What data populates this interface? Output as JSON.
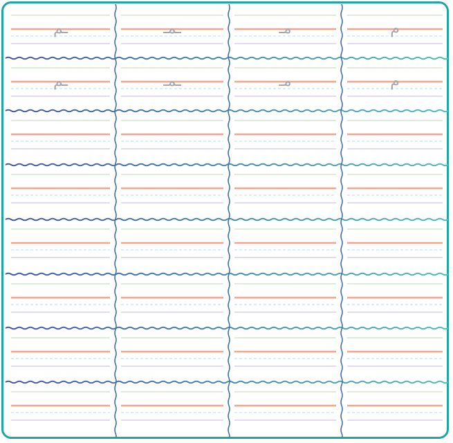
{
  "worksheet": {
    "frame_color": "#1ea7a0",
    "line_colors": {
      "top_line": "#cfe6cc",
      "base_line": "#f3a48c",
      "dashed_line": "#bfe3f0",
      "bottom_line": "#d9cdea",
      "divider_left": "#4256a6",
      "divider_right": "#4dbfb6",
      "column_divider": "#3f6fae"
    },
    "rows": [
      {
        "cells": [
          "ـم",
          "ـمـ",
          "مـ",
          "م"
        ]
      },
      {
        "cells": [
          "ـم",
          "ـمـ",
          "مـ",
          "م"
        ]
      },
      {
        "cells": [
          "",
          "",
          "",
          ""
        ]
      },
      {
        "cells": [
          "",
          "",
          "",
          ""
        ]
      },
      {
        "cells": [
          "",
          "",
          "",
          ""
        ]
      },
      {
        "cells": [
          "",
          "",
          "",
          ""
        ]
      },
      {
        "cells": [
          "",
          "",
          "",
          ""
        ]
      },
      {
        "cells": [
          "",
          "",
          "",
          ""
        ]
      }
    ]
  }
}
